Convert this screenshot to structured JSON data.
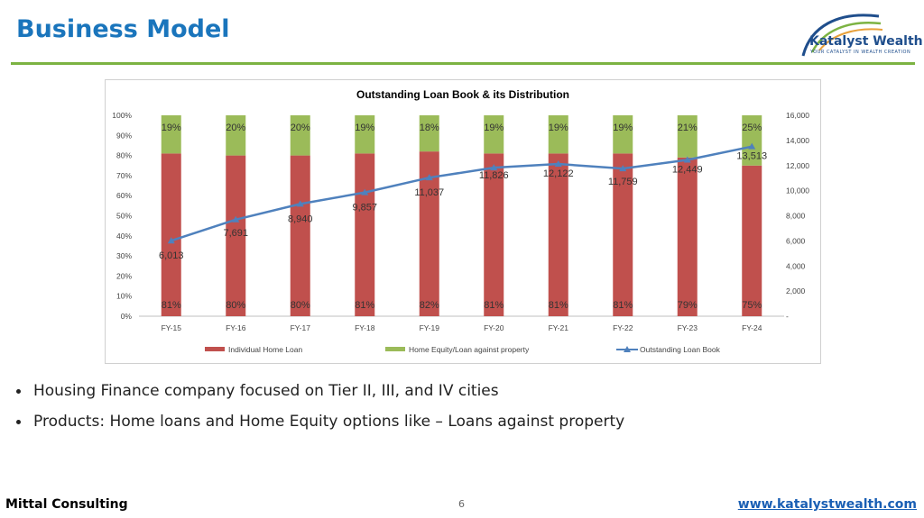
{
  "header": {
    "title": "Business Model"
  },
  "logo": {
    "name": "Katalyst Wealth",
    "tagline": "YOUR CATALYST IN WEALTH CREATION"
  },
  "bullets": [
    "Housing Finance company focused on Tier II, III, and IV cities",
    "Products: Home loans and Home Equity options like – Loans against property"
  ],
  "footer": {
    "left": "Mittal Consulting",
    "page": "6",
    "right": "www.katalystwealth.com"
  },
  "colors": {
    "accent": "#1a75bc",
    "rule": "#7cb342",
    "home_loan": "#c0504d",
    "home_equity": "#9bbb59",
    "loan_book": "#4f81bd"
  },
  "chart_data": {
    "type": "bar",
    "title": "Outstanding Loan Book & its Distribution",
    "categories": [
      "FY-15",
      "FY-16",
      "FY-17",
      "FY-18",
      "FY-19",
      "FY-20",
      "FY-21",
      "FY-22",
      "FY-23",
      "FY-24"
    ],
    "series": [
      {
        "name": "Individual Home Loan",
        "type": "bar",
        "stack": "pct",
        "values": [
          81,
          80,
          80,
          81,
          82,
          81,
          81,
          81,
          79,
          75
        ],
        "labels": [
          "81%",
          "80%",
          "80%",
          "81%",
          "82%",
          "81%",
          "81%",
          "81%",
          "79%",
          "75%"
        ]
      },
      {
        "name": "Home Equity/Loan against property",
        "type": "bar",
        "stack": "pct",
        "values": [
          19,
          20,
          20,
          19,
          18,
          19,
          19,
          19,
          21,
          25
        ],
        "labels": [
          "19%",
          "20%",
          "20%",
          "19%",
          "18%",
          "19%",
          "19%",
          "19%",
          "21%",
          "25%"
        ]
      },
      {
        "name": "Outstanding Loan Book",
        "type": "line",
        "axis": "right",
        "values": [
          6013,
          7691,
          8940,
          9857,
          11037,
          11826,
          12122,
          11759,
          12449,
          13513
        ],
        "labels": [
          "6,013",
          "7,691",
          "8,940",
          "9,857",
          "11,037",
          "11,826",
          "12,122",
          "11,759",
          "12,449",
          "13,513"
        ]
      }
    ],
    "y_left": {
      "ylim": [
        0,
        100
      ],
      "ticks": [
        "0%",
        "10%",
        "20%",
        "30%",
        "40%",
        "50%",
        "60%",
        "70%",
        "80%",
        "90%",
        "100%"
      ]
    },
    "y_right": {
      "ylim": [
        0,
        16000
      ],
      "ticks": [
        "-",
        "2,000",
        "4,000",
        "6,000",
        "8,000",
        "10,000",
        "12,000",
        "14,000",
        "16,000"
      ]
    },
    "grid": false,
    "legend": "bottom"
  }
}
